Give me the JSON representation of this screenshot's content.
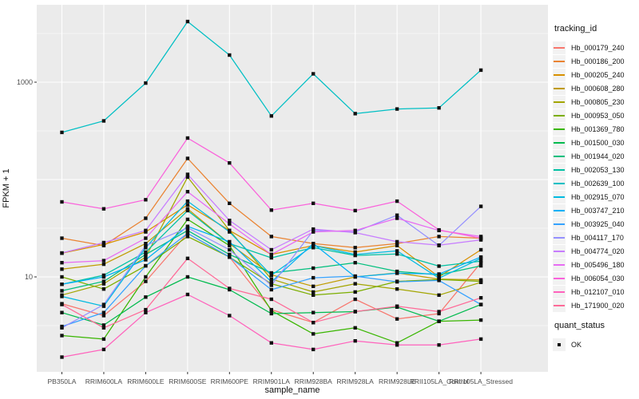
{
  "figure": {
    "xlabel": "sample_name",
    "ylabel": "FPKM + 1"
  },
  "legend": {
    "tracking_title": "tracking_id",
    "quant_title": "quant_status",
    "quant_item_label": "OK"
  },
  "colors": {
    "panel_bg": "#EBEBEB",
    "grid": "#FFFFFF",
    "point": "#111111",
    "tick_mark": "#333333",
    "tick_text": "#4D4D4D",
    "legend_key_bg": "#F2F2F2"
  },
  "chart_data": {
    "type": "line",
    "title": "",
    "xlabel": "sample_name",
    "ylabel": "FPKM + 1",
    "y_scale": "log10",
    "ylim": [
      1.05,
      6300
    ],
    "grid": true,
    "legend_position": "right",
    "legend_title": "tracking_id",
    "marker": "black-square",
    "quant_status": {
      "title": "quant_status",
      "items": [
        "OK"
      ]
    },
    "y_ticks": [
      {
        "value": 10,
        "label": "10"
      },
      {
        "value": 1000,
        "label": "1000"
      }
    ],
    "y_major_gridlines": [
      10,
      100,
      1000
    ],
    "y_minor_gridlines": [
      3.162,
      31.62,
      316.2,
      3162
    ],
    "categories": [
      "PB350LA",
      "RRIM600LA",
      "RRIM600LE",
      "RRIM600SE",
      "RRIM600PE",
      "RRIM901LA",
      "RRIM928BA",
      "RRIM928LA",
      "RRIM928LE",
      "RRII105LA_Control",
      "RRII105LA_Stressed"
    ],
    "series": [
      {
        "name": "Hb_000179_240",
        "color": "#F8766D",
        "values": [
          5.3,
          4.0,
          9.0,
          28,
          16,
          4.6,
          3.4,
          5.9,
          3.7,
          4.2,
          14
        ]
      },
      {
        "name": "Hb_000186_200",
        "color": "#EA8331",
        "values": [
          25,
          21,
          40,
          165,
          57,
          26,
          22,
          20,
          22,
          26,
          25
        ]
      },
      {
        "name": "Hb_000205_240",
        "color": "#D89000",
        "values": [
          17.5,
          21.5,
          29,
          55,
          30,
          17,
          21,
          18,
          21,
          10,
          19
        ]
      },
      {
        "name": "Hb_000608_280",
        "color": "#C09B00",
        "values": [
          12,
          13.5,
          22,
          50,
          22,
          10.5,
          8,
          10,
          11,
          9.5,
          9.3
        ]
      },
      {
        "name": "Hb_000805_230",
        "color": "#A3A500",
        "values": [
          6.5,
          8.5,
          16,
          106,
          30,
          9.5,
          7,
          8.5,
          7.5,
          6.5,
          8.8
        ]
      },
      {
        "name": "Hb_000953_050",
        "color": "#7CAE00",
        "values": [
          10,
          7.5,
          13,
          26,
          16,
          8.5,
          6.5,
          7,
          9,
          9.4,
          9
        ]
      },
      {
        "name": "Hb_001369_780",
        "color": "#39B600",
        "values": [
          2.5,
          2.3,
          10,
          39,
          21,
          4.5,
          2.6,
          3.0,
          2.1,
          3.5,
          3.6
        ]
      },
      {
        "name": "Hb_001500_030",
        "color": "#00BB4E",
        "values": [
          4.3,
          3.2,
          6.2,
          10,
          7.4,
          4.2,
          4.3,
          4.4,
          4.9,
          3.5,
          5.2
        ]
      },
      {
        "name": "Hb_001944_020",
        "color": "#00BF7D",
        "values": [
          7.2,
          9,
          17,
          30,
          17,
          11,
          12.3,
          14,
          11.4,
          10.5,
          13
        ]
      },
      {
        "name": "Hb_002053_130",
        "color": "#00C1A3",
        "values": [
          8.4,
          10.4,
          18,
          48,
          22,
          15.7,
          20,
          16.6,
          17.2,
          12.9,
          14.5
        ]
      },
      {
        "name": "Hb_002639_100",
        "color": "#00BFC4",
        "values": [
          305,
          400,
          980,
          4200,
          1900,
          450,
          1220,
          475,
          530,
          545,
          1330
        ]
      },
      {
        "name": "Hb_002915_070",
        "color": "#00BAE0",
        "values": [
          6.3,
          5.0,
          20,
          60,
          29,
          10.4,
          21,
          17,
          18.5,
          9.7,
          15.5
        ]
      },
      {
        "name": "Hb_003747_210",
        "color": "#00B0F6",
        "values": [
          8.4,
          10,
          15,
          33,
          23,
          8.9,
          22,
          10,
          10.9,
          10.7,
          16
        ]
      },
      {
        "name": "Hb_003925_040",
        "color": "#35A2FF",
        "values": [
          3.1,
          4.3,
          13,
          28,
          16,
          7.4,
          9.8,
          10.2,
          8.9,
          9.2,
          5.2
        ]
      },
      {
        "name": "Hb_004117_170",
        "color": "#9590FF",
        "values": [
          3.0,
          5.2,
          21,
          32,
          19,
          8.2,
          30,
          29,
          43,
          21,
          53
        ]
      },
      {
        "name": "Hb_004774_020",
        "color": "#C77CFF",
        "values": [
          17.6,
          22.5,
          30,
          113,
          38,
          19,
          31,
          28.5,
          23,
          21.2,
          24
        ]
      },
      {
        "name": "Hb_005496_180",
        "color": "#E76BF3",
        "values": [
          14,
          14.7,
          25,
          75,
          35,
          17,
          29,
          30,
          40,
          30,
          26
        ]
      },
      {
        "name": "Hb_006054_030",
        "color": "#FA62DB",
        "values": [
          59,
          50,
          62,
          267,
          148,
          48.5,
          57,
          48,
          60,
          30.4,
          25
        ]
      },
      {
        "name": "Hb_012107_010",
        "color": "#FF62BC",
        "values": [
          1.5,
          1.8,
          4.3,
          6.6,
          4.0,
          2.1,
          1.8,
          2.2,
          2.0,
          2.0,
          2.3
        ]
      },
      {
        "name": "Hb_171900_020",
        "color": "#FF6A98",
        "values": [
          5.2,
          3.0,
          4.6,
          15.5,
          7.6,
          5.9,
          3.4,
          4.4,
          5.0,
          4.4,
          6.1
        ]
      }
    ]
  }
}
